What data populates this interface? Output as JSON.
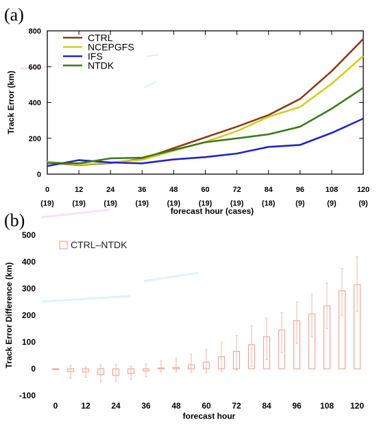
{
  "chart_data": [
    {
      "panel_label": "(a)",
      "type": "line",
      "x": [
        0,
        12,
        24,
        36,
        48,
        60,
        72,
        84,
        96,
        108,
        120
      ],
      "x_tick_labels": [
        "0",
        "12",
        "24",
        "36",
        "48",
        "60",
        "72",
        "84",
        "96",
        "108",
        "120"
      ],
      "case_labels": [
        "(19)",
        "(19)",
        "(19)",
        "(19)",
        "(19)",
        "(19)",
        "(19)",
        "(18)",
        "(9)",
        "(9)",
        "(9)"
      ],
      "xlabel": "forecast hour (cases)",
      "ylabel": "Track Error (km)",
      "ylim": [
        0,
        800
      ],
      "y_ticks": [
        0,
        200,
        400,
        600,
        800
      ],
      "legend_position": "top-left",
      "series": [
        {
          "name": "CTRL",
          "color": "#8b3a1a",
          "values": [
            65,
            50,
            62,
            85,
            145,
            205,
            265,
            330,
            420,
            575,
            755
          ]
        },
        {
          "name": "NCEPGFS",
          "color": "#d4cc1c",
          "values": [
            70,
            52,
            65,
            80,
            130,
            180,
            240,
            320,
            375,
            505,
            660
          ]
        },
        {
          "name": "IFS",
          "color": "#2222cc",
          "values": [
            45,
            78,
            65,
            60,
            82,
            95,
            115,
            152,
            163,
            230,
            310
          ]
        },
        {
          "name": "NTDK",
          "color": "#3a7a18",
          "values": [
            62,
            60,
            88,
            92,
            135,
            178,
            200,
            222,
            265,
            365,
            482
          ]
        }
      ]
    },
    {
      "panel_label": "(b)",
      "type": "bar",
      "x": [
        0,
        6,
        12,
        18,
        24,
        30,
        36,
        42,
        48,
        54,
        60,
        66,
        72,
        78,
        84,
        90,
        96,
        102,
        108,
        114,
        120
      ],
      "x_tick_labels": [
        "0",
        "12",
        "24",
        "36",
        "48",
        "60",
        "72",
        "84",
        "96",
        "108",
        "120"
      ],
      "x_tick_values": [
        0,
        12,
        24,
        36,
        48,
        60,
        72,
        84,
        96,
        108,
        120
      ],
      "xlabel": "forecast hour",
      "ylabel": "Track Error Difference (km)",
      "ylim": [
        -100,
        500
      ],
      "y_ticks": [
        -100,
        0,
        100,
        200,
        300,
        400,
        500
      ],
      "legend_position": "top-left",
      "series": [
        {
          "name": "CTRL–NTDK",
          "color": "#e8a898",
          "values": [
            -2,
            -10,
            -12,
            -22,
            -25,
            -18,
            -8,
            3,
            5,
            15,
            25,
            45,
            65,
            90,
            120,
            145,
            180,
            205,
            235,
            292,
            315
          ],
          "error_low": [
            -3,
            -35,
            -32,
            -48,
            -48,
            -40,
            -30,
            -12,
            -12,
            -15,
            -15,
            -10,
            -5,
            10,
            35,
            60,
            95,
            120,
            150,
            200,
            215
          ],
          "error_high": [
            1,
            12,
            8,
            15,
            15,
            10,
            18,
            30,
            40,
            55,
            72,
            100,
            125,
            160,
            190,
            210,
            250,
            280,
            320,
            375,
            420
          ]
        }
      ]
    }
  ]
}
